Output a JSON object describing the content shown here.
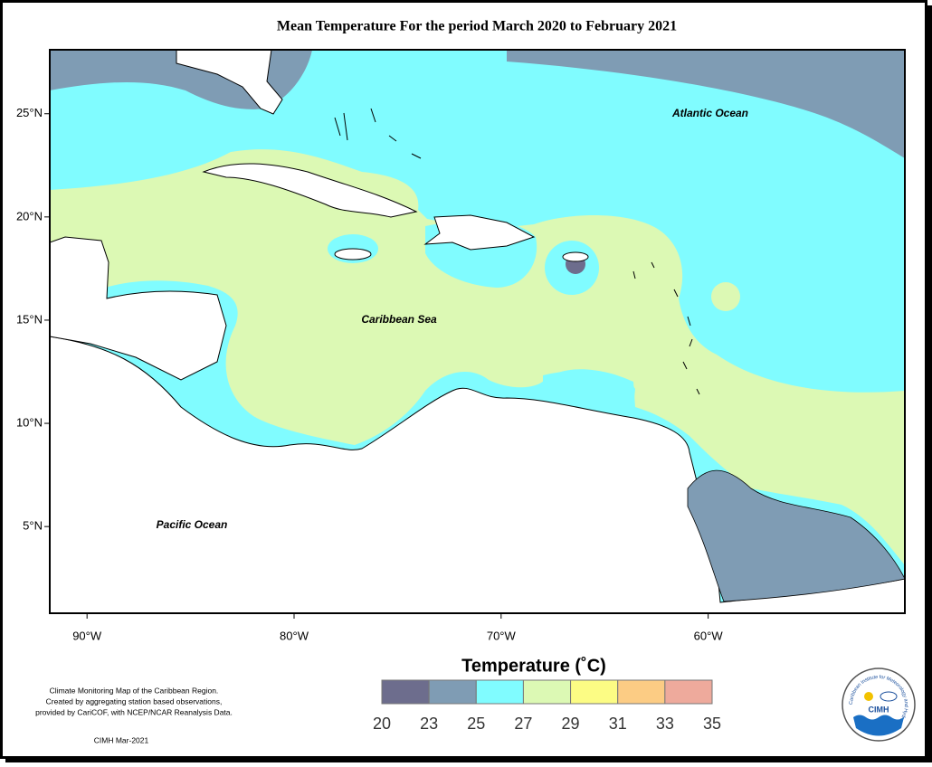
{
  "title": "Mean Temperature For the period March 2020 to February 2021",
  "map": {
    "xlim": [
      -91.8,
      -50.5
    ],
    "ylim": [
      0.8,
      28.1
    ],
    "xticks": [
      {
        "value": -90,
        "label": "90°W"
      },
      {
        "value": -80,
        "label": "80°W"
      },
      {
        "value": -70,
        "label": "70°W"
      },
      {
        "value": -60,
        "label": "60°W"
      }
    ],
    "yticks": [
      {
        "value": 5,
        "label": "5°N"
      },
      {
        "value": 10,
        "label": "10°N"
      },
      {
        "value": 15,
        "label": "15°N"
      },
      {
        "value": 20,
        "label": "20°N"
      },
      {
        "value": 25,
        "label": "25°N"
      }
    ],
    "ocean_labels": [
      "Atlantic Ocean",
      "Caribbean Sea",
      "Pacific Ocean"
    ]
  },
  "legend": {
    "title": "Temperature (˚C)",
    "bins": [
      20,
      23,
      25,
      27,
      29,
      31,
      33,
      35
    ],
    "colors": [
      "#6d6d8d",
      "#7f9cb4",
      "#80fcff",
      "#dcf9b4",
      "#fcfc84",
      "#fccc84",
      "#eeaa9c"
    ]
  },
  "credit": {
    "lines": [
      "Climate Monitoring Map of the Caribbean Region.",
      "Created by aggregating station based observations,",
      "provided by CariCOF, with NCEP/NCAR Reanalysis Data."
    ],
    "date": "CIMH Mar-2021"
  },
  "logo": {
    "name": "CIMH",
    "ring": "Caribbean Institute for Meteorology and Hydrology"
  }
}
